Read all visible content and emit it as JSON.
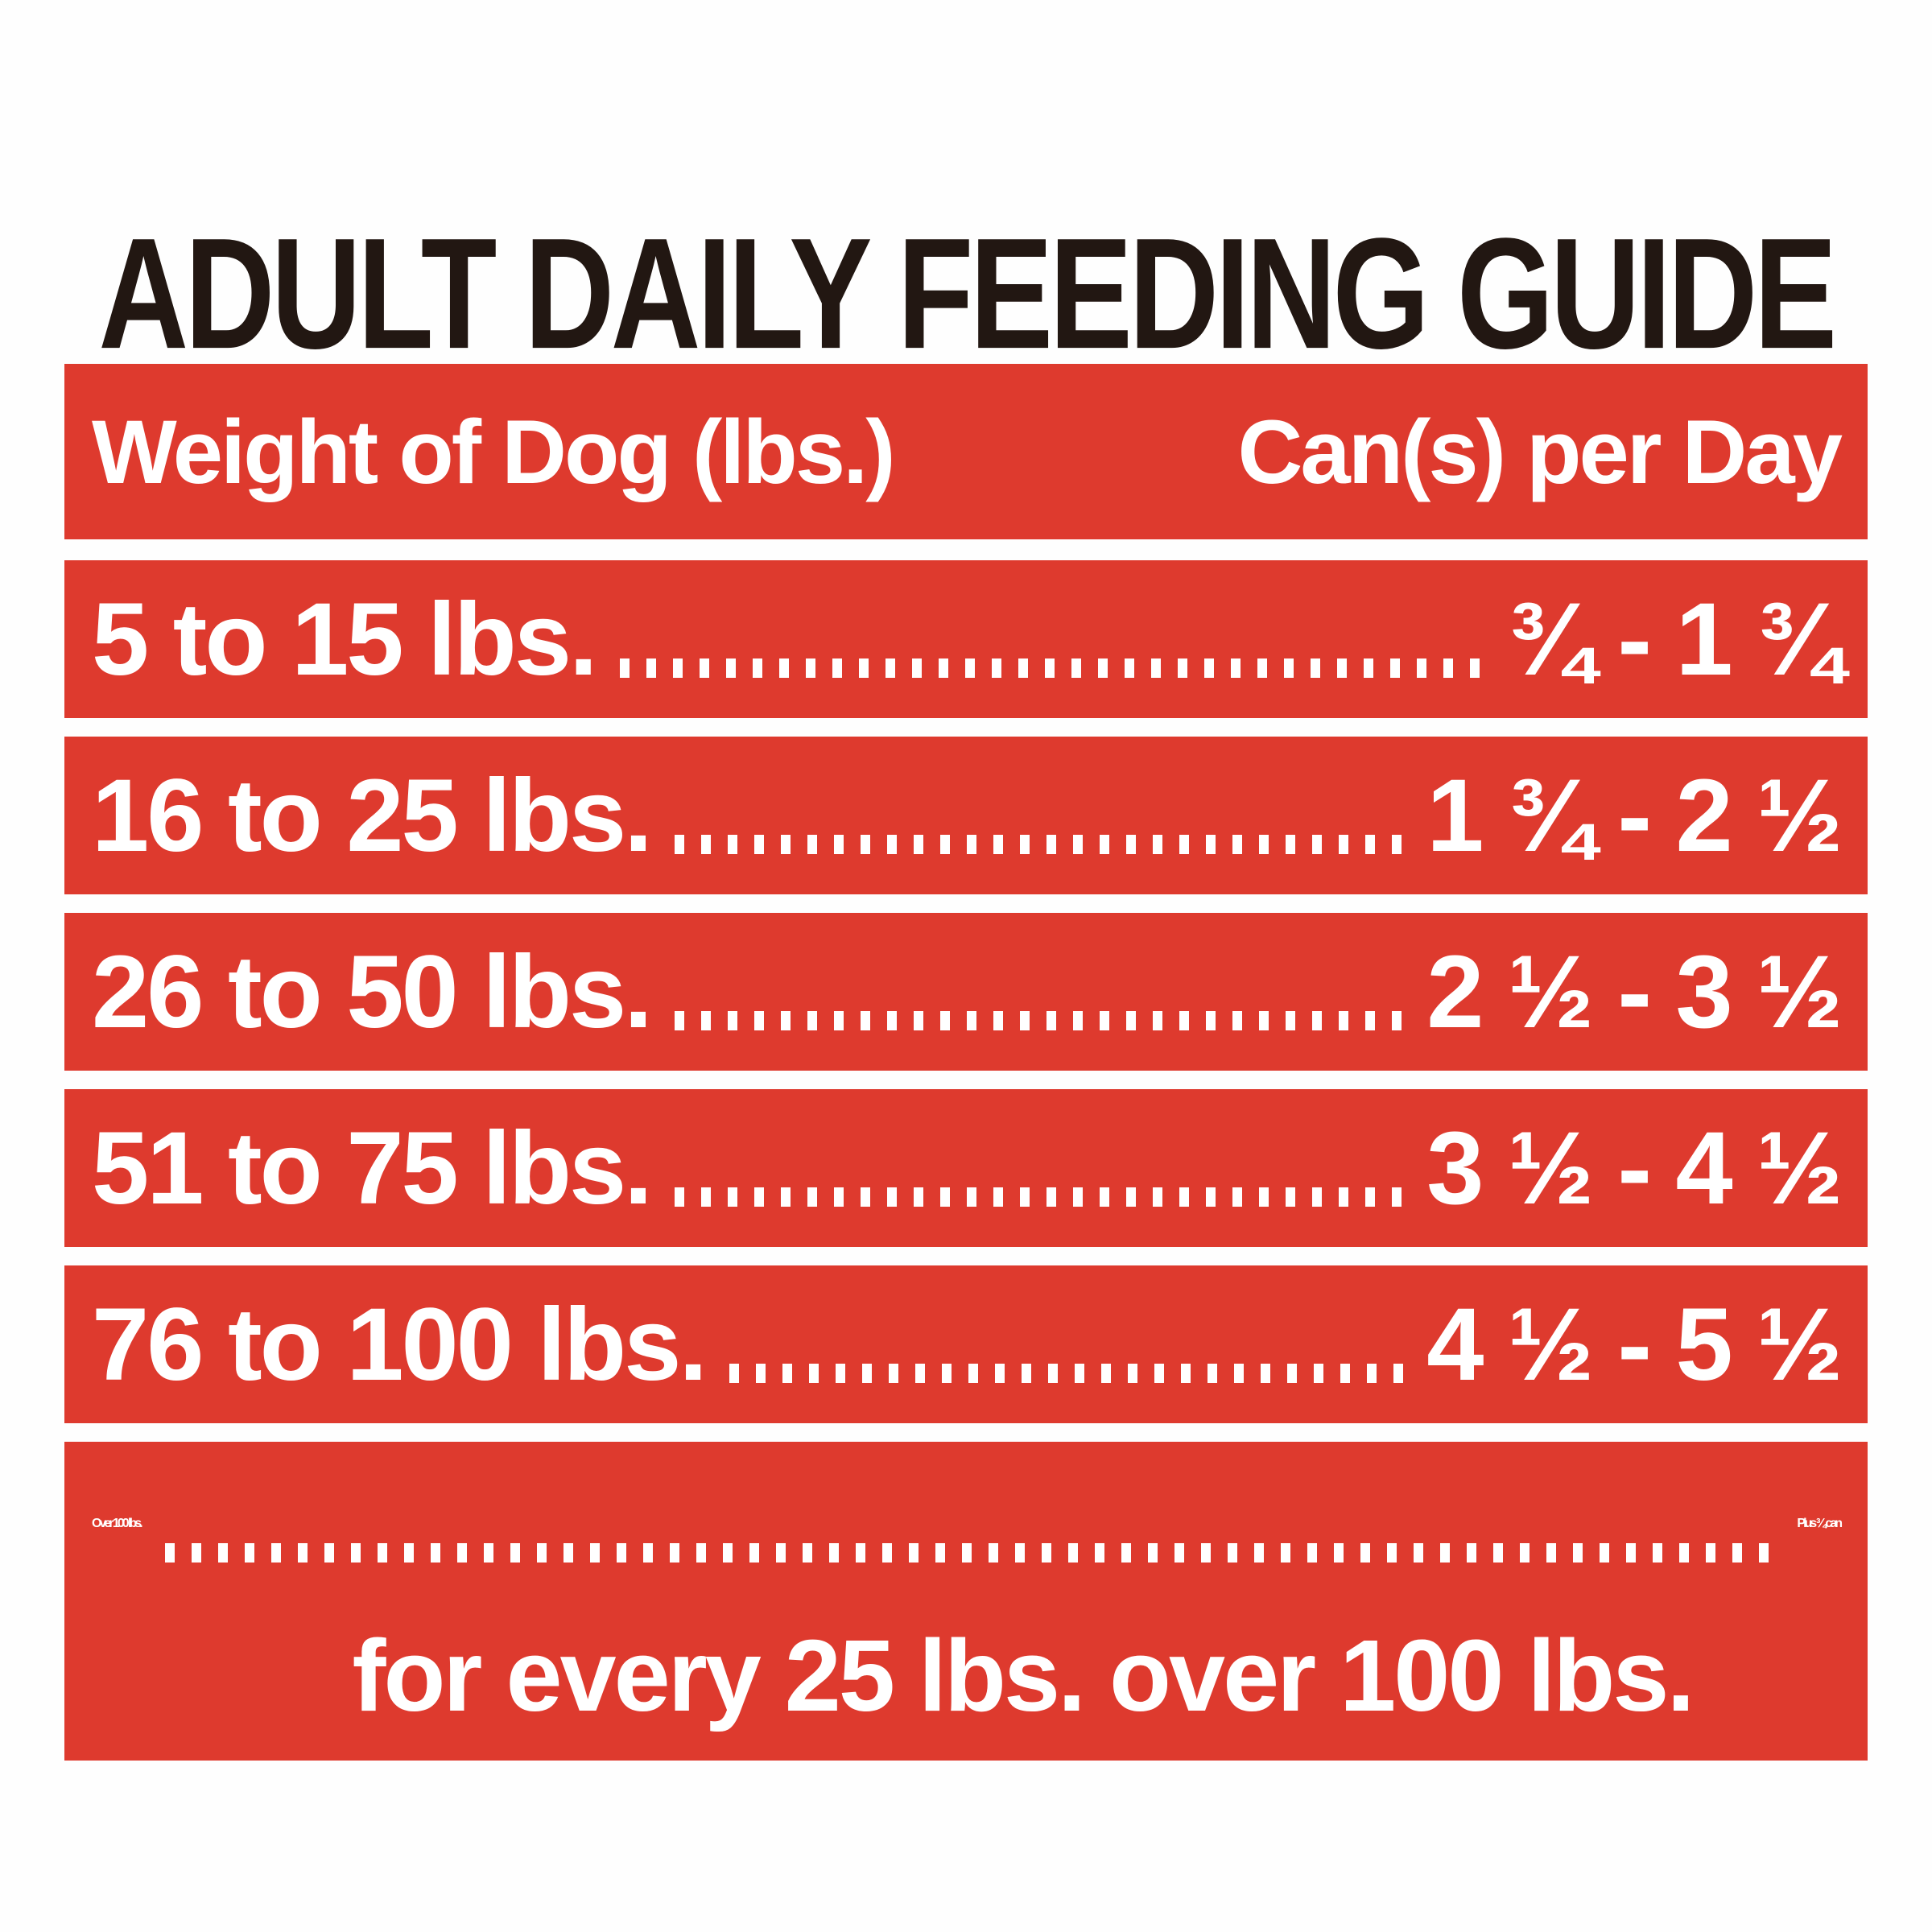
{
  "title": "ADULT DAILY FEEDING GUIDE",
  "colors": {
    "band_red": "#de3a2e",
    "band_text": "#ffffff",
    "title_black": "#221712",
    "label_background": "#fefefe"
  },
  "table": {
    "col_weight": "Weight of Dog (lbs.)",
    "col_cans": "Can(s) per Day",
    "rows": [
      {
        "weight": "5 to 15 lbs.",
        "cans": "¾ - 1 ¾"
      },
      {
        "weight": "16 to 25 lbs.",
        "cans": "1 ¾ - 2 ½"
      },
      {
        "weight": "26 to 50 lbs.",
        "cans": "2 ½ - 3 ½"
      },
      {
        "weight": "51 to 75 lbs.",
        "cans": "3 ½ - 4 ½"
      },
      {
        "weight": "76 to 100 lbs.",
        "cans": "4 ½ - 5 ½"
      },
      {
        "weight": "Over 100 lbs.",
        "cans": "Plus ¾ can",
        "note": "for every 25 lbs. over 100 lbs."
      }
    ]
  },
  "chart_data": {
    "type": "table",
    "title": "ADULT DAILY FEEDING GUIDE",
    "columns": [
      "Weight of Dog (lbs.)",
      "Can(s) per Day"
    ],
    "rows": [
      [
        "5 to 15 lbs.",
        "¾ - 1 ¾"
      ],
      [
        "16 to 25 lbs.",
        "1 ¾ - 2 ½"
      ],
      [
        "26 to 50 lbs.",
        "2 ½ - 3 ½"
      ],
      [
        "51 to 75 lbs.",
        "3 ½ - 4 ½"
      ],
      [
        "76 to 100 lbs.",
        "4 ½ - 5 ½"
      ],
      [
        "Over 100 lbs.",
        "Plus ¾ can for every 25 lbs. over 100 lbs."
      ]
    ]
  }
}
